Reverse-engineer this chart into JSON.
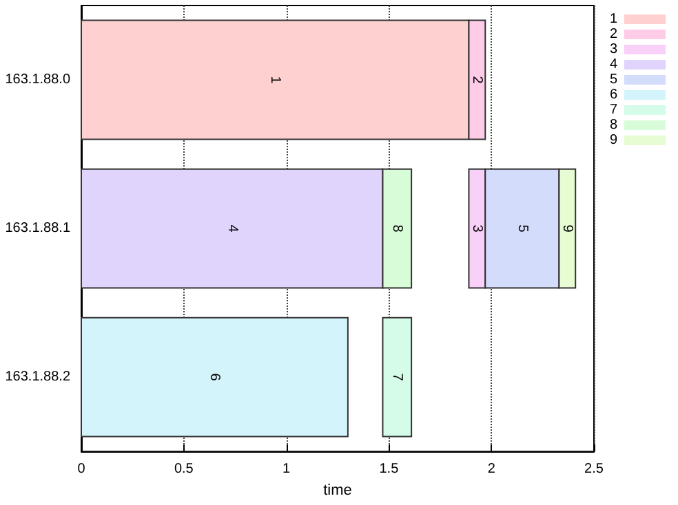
{
  "chart_data": {
    "type": "bar",
    "orientation": "horizontal",
    "xlabel": "time",
    "categories": [
      "163.1.88.0",
      "163.1.88.1",
      "163.1.88.2"
    ],
    "xlim": [
      0,
      2.5
    ],
    "xticks": [
      0,
      0.5,
      1,
      1.5,
      2,
      2.5
    ],
    "grid": "x",
    "legend": "top right",
    "series": [
      {
        "name": "1",
        "color": "#ffd0d0",
        "base": [
          0,
          null,
          null
        ],
        "values": [
          1.89,
          null,
          null
        ]
      },
      {
        "name": "2",
        "color": "#ffcce8",
        "base": [
          1.89,
          null,
          null
        ],
        "values": [
          0.08,
          null,
          null
        ]
      },
      {
        "name": "3",
        "color": "#f8d0f8",
        "base": [
          null,
          1.89,
          null
        ],
        "values": [
          null,
          0.08,
          null
        ]
      },
      {
        "name": "4",
        "color": "#e0d4fc",
        "base": [
          null,
          0,
          null
        ],
        "values": [
          null,
          1.47,
          null
        ]
      },
      {
        "name": "5",
        "color": "#d4dcfc",
        "base": [
          null,
          1.97,
          null
        ],
        "values": [
          null,
          0.36,
          null
        ]
      },
      {
        "name": "6",
        "color": "#d4f4fc",
        "base": [
          null,
          null,
          0
        ],
        "values": [
          null,
          null,
          1.3
        ]
      },
      {
        "name": "7",
        "color": "#d4fce8",
        "base": [
          null,
          null,
          1.47
        ],
        "values": [
          null,
          null,
          0.14
        ]
      },
      {
        "name": "8",
        "color": "#d8fcd8",
        "base": [
          null,
          1.47,
          null
        ],
        "values": [
          null,
          0.14,
          null
        ]
      },
      {
        "name": "9",
        "color": "#e8fcd4",
        "base": [
          null,
          2.33,
          null
        ],
        "values": [
          null,
          0.08,
          null
        ]
      }
    ]
  }
}
